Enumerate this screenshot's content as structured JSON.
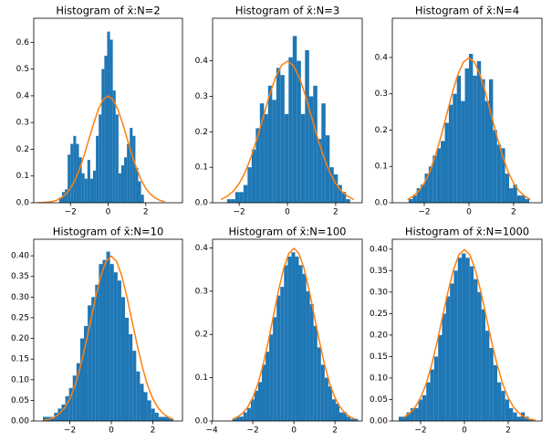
{
  "chart_data": [
    {
      "type": "histogram",
      "title": "Histogram of x̄:N=2",
      "color": "#1f77b4",
      "bins": [
        -2.6,
        -2.45,
        -2.3,
        -2.15,
        -2.0,
        -1.85,
        -1.7,
        -1.55,
        -1.4,
        -1.25,
        -1.1,
        -0.95,
        -0.8,
        -0.65,
        -0.5,
        -0.35,
        -0.2,
        -0.05,
        0.1,
        0.25,
        0.4,
        0.55,
        0.7,
        0.85,
        1.0,
        1.15,
        1.3,
        1.45,
        1.6,
        1.75,
        1.9
      ],
      "values": [
        0.02,
        0.04,
        0.05,
        0.18,
        0.22,
        0.25,
        0.22,
        0.17,
        0.11,
        0.09,
        0.16,
        0.09,
        0.12,
        0.25,
        0.33,
        0.5,
        0.55,
        0.64,
        0.61,
        0.42,
        0.33,
        0.11,
        0.14,
        0.17,
        0.22,
        0.28,
        0.25,
        0.13,
        0.08,
        0.03
      ],
      "curve": {
        "color": "#ff7f0e",
        "x": [
          -3.75,
          -3.5,
          -3.25,
          -3.0,
          -2.75,
          -2.5,
          -2.25,
          -2.0,
          -1.75,
          -1.5,
          -1.25,
          -1.0,
          -0.75,
          -0.5,
          -0.25,
          0,
          0.25,
          0.5,
          0.75,
          1.0,
          1.25,
          1.5,
          1.75,
          2.0,
          2.25,
          2.5,
          2.75,
          3.0
        ],
        "values": [
          0.0004,
          0.001,
          0.002,
          0.004,
          0.009,
          0.018,
          0.032,
          0.054,
          0.086,
          0.13,
          0.183,
          0.242,
          0.301,
          0.352,
          0.387,
          0.399,
          0.387,
          0.352,
          0.301,
          0.242,
          0.183,
          0.13,
          0.086,
          0.054,
          0.032,
          0.018,
          0.009,
          0.004
        ]
      },
      "xlim": [
        -3.95,
        3.95
      ],
      "ylim": [
        0,
        0.69
      ],
      "xticks": [
        {
          "value": -2,
          "label": "−2"
        },
        0,
        2
      ],
      "yticks": [
        {
          "value": 0,
          "label": "0.0"
        },
        0.1,
        0.2,
        0.3,
        0.4,
        0.5,
        0.6
      ]
    },
    {
      "type": "histogram",
      "title": "Histogram of x̄:N=3",
      "color": "#1f77b4",
      "bins": [
        -2.5,
        -2.33,
        -2.16,
        -1.99,
        -1.82,
        -1.65,
        -1.48,
        -1.31,
        -1.14,
        -0.97,
        -0.8,
        -0.63,
        -0.46,
        -0.29,
        -0.12,
        0.05,
        0.22,
        0.39,
        0.56,
        0.73,
        0.9,
        1.07,
        1.24,
        1.41,
        1.58,
        1.75,
        1.92,
        2.09,
        2.26,
        2.43,
        2.6
      ],
      "values": [
        0.01,
        0.01,
        0.03,
        0.03,
        0.05,
        0.1,
        0.15,
        0.21,
        0.28,
        0.25,
        0.33,
        0.29,
        0.38,
        0.36,
        0.25,
        0.41,
        0.47,
        0.4,
        0.25,
        0.43,
        0.3,
        0.33,
        0.18,
        0.28,
        0.19,
        0.1,
        0.08,
        0.05,
        0.03,
        0.01
      ],
      "curve": {
        "color": "#ff7f0e",
        "x": [
          -2.75,
          -2.5,
          -2.25,
          -2.0,
          -1.75,
          -1.5,
          -1.25,
          -1.0,
          -0.75,
          -0.5,
          -0.25,
          0,
          0.25,
          0.5,
          0.75,
          1.0,
          1.25,
          1.5,
          1.75,
          2.0,
          2.25,
          2.5,
          2.75
        ],
        "values": [
          0.009,
          0.018,
          0.032,
          0.054,
          0.086,
          0.13,
          0.183,
          0.242,
          0.301,
          0.352,
          0.387,
          0.399,
          0.387,
          0.352,
          0.301,
          0.242,
          0.183,
          0.13,
          0.086,
          0.054,
          0.032,
          0.018,
          0.009
        ]
      },
      "xlim": [
        -3.1,
        3.1
      ],
      "ylim": [
        0,
        0.52
      ],
      "xticks": [
        {
          "value": -2,
          "label": "−2"
        },
        0,
        2
      ],
      "yticks": [
        {
          "value": 0,
          "label": "0.0"
        },
        0.1,
        0.2,
        0.3,
        0.4
      ]
    },
    {
      "type": "histogram",
      "title": "Histogram of x̄:N=4",
      "color": "#1f77b4",
      "bins": [
        -2.7,
        -2.52,
        -2.34,
        -2.16,
        -1.98,
        -1.8,
        -1.62,
        -1.44,
        -1.26,
        -1.08,
        -0.9,
        -0.72,
        -0.54,
        -0.36,
        -0.18,
        0,
        0.18,
        0.36,
        0.54,
        0.72,
        0.9,
        1.08,
        1.26,
        1.44,
        1.62,
        1.8,
        1.98,
        2.16,
        2.34,
        2.52,
        2.7
      ],
      "values": [
        0.01,
        0.02,
        0.04,
        0.05,
        0.08,
        0.1,
        0.13,
        0.15,
        0.17,
        0.22,
        0.27,
        0.3,
        0.35,
        0.28,
        0.37,
        0.41,
        0.35,
        0.39,
        0.34,
        0.28,
        0.34,
        0.2,
        0.16,
        0.15,
        0.08,
        0.04,
        0.05,
        0.02,
        0.02,
        0.01
      ],
      "curve": {
        "color": "#ff7f0e",
        "x": [
          -2.75,
          -2.5,
          -2.25,
          -2.0,
          -1.75,
          -1.5,
          -1.25,
          -1.0,
          -0.75,
          -0.5,
          -0.25,
          0,
          0.25,
          0.5,
          0.75,
          1.0,
          1.25,
          1.5,
          1.75,
          2.0,
          2.25,
          2.5,
          2.75
        ],
        "values": [
          0.009,
          0.018,
          0.032,
          0.054,
          0.086,
          0.13,
          0.183,
          0.242,
          0.301,
          0.352,
          0.387,
          0.399,
          0.387,
          0.352,
          0.301,
          0.242,
          0.183,
          0.13,
          0.086,
          0.054,
          0.032,
          0.018,
          0.009
        ]
      },
      "xlim": [
        -3.43,
        3.27
      ],
      "ylim": [
        0,
        0.508
      ],
      "xticks": [
        {
          "value": -2,
          "label": "−2"
        },
        0,
        2
      ],
      "yticks": [
        {
          "value": 0,
          "label": "0.0"
        },
        0.1,
        0.2,
        0.3,
        0.4
      ]
    },
    {
      "type": "histogram",
      "title": "Histogram of x̄:N=10",
      "color": "#1f77b4",
      "bins": [
        -3.3,
        -3.12,
        -2.94,
        -2.76,
        -2.58,
        -2.4,
        -2.22,
        -2.04,
        -1.86,
        -1.68,
        -1.5,
        -1.32,
        -1.14,
        -0.96,
        -0.78,
        -0.6,
        -0.42,
        -0.24,
        -0.06,
        0.12,
        0.3,
        0.48,
        0.66,
        0.84,
        1.02,
        1.2,
        1.38,
        1.56,
        1.74,
        1.92,
        2.1,
        2.28,
        2.46,
        2.64,
        2.82,
        3.0
      ],
      "values": [
        0.01,
        0.01,
        0.01,
        0.02,
        0.03,
        0.04,
        0.06,
        0.08,
        0.11,
        0.14,
        0.2,
        0.23,
        0.28,
        0.3,
        0.33,
        0.38,
        0.39,
        0.41,
        0.38,
        0.36,
        0.34,
        0.3,
        0.25,
        0.21,
        0.17,
        0.12,
        0.09,
        0.07,
        0.05,
        0.03,
        0.02,
        0.01,
        0.01,
        0.01,
        0.005
      ],
      "curve": {
        "color": "#ff7f0e",
        "x": [
          -3.25,
          -3.0,
          -2.75,
          -2.5,
          -2.25,
          -2.0,
          -1.75,
          -1.5,
          -1.25,
          -1.0,
          -0.75,
          -0.5,
          -0.25,
          0,
          0.25,
          0.5,
          0.75,
          1.0,
          1.25,
          1.5,
          1.75,
          2.0,
          2.25,
          2.5,
          2.75,
          3.0
        ],
        "values": [
          0.002,
          0.004,
          0.009,
          0.018,
          0.032,
          0.054,
          0.086,
          0.13,
          0.183,
          0.242,
          0.301,
          0.352,
          0.387,
          0.399,
          0.387,
          0.352,
          0.301,
          0.242,
          0.183,
          0.13,
          0.086,
          0.054,
          0.032,
          0.018,
          0.009,
          0.004
        ]
      },
      "xlim": [
        -3.74,
        3.43
      ],
      "ylim": [
        0,
        0.44
      ],
      "xticks": [
        {
          "value": -2,
          "label": "−2"
        },
        0,
        2
      ],
      "yticks": [
        {
          "value": 0,
          "label": "0.00"
        },
        0.05,
        {
          "value": 0.1,
          "label": "0.10"
        },
        0.15,
        {
          "value": 0.2,
          "label": "0.20"
        },
        0.25,
        {
          "value": 0.3,
          "label": "0.30"
        },
        0.35,
        {
          "value": 0.4,
          "label": "0.40"
        }
      ]
    },
    {
      "type": "histogram",
      "title": "Histogram of x̄:N=100",
      "color": "#1f77b4",
      "bins": [
        -3.0,
        -2.82,
        -2.64,
        -2.46,
        -2.28,
        -2.1,
        -1.92,
        -1.74,
        -1.56,
        -1.38,
        -1.2,
        -1.02,
        -0.84,
        -0.66,
        -0.48,
        -0.3,
        -0.12,
        0.06,
        0.24,
        0.42,
        0.6,
        0.78,
        0.96,
        1.14,
        1.32,
        1.5,
        1.68,
        1.86,
        2.04,
        2.22,
        2.4,
        2.58,
        2.76,
        2.94,
        3.12
      ],
      "values": [
        0.005,
        0.01,
        0.01,
        0.02,
        0.03,
        0.05,
        0.07,
        0.09,
        0.13,
        0.16,
        0.2,
        0.24,
        0.29,
        0.31,
        0.36,
        0.38,
        0.39,
        0.38,
        0.36,
        0.34,
        0.3,
        0.27,
        0.22,
        0.17,
        0.13,
        0.1,
        0.08,
        0.05,
        0.04,
        0.02,
        0.02,
        0.01,
        0.005,
        0.005
      ],
      "curve": {
        "color": "#ff7f0e",
        "x": [
          -3.0,
          -2.75,
          -2.5,
          -2.25,
          -2.0,
          -1.75,
          -1.5,
          -1.25,
          -1.0,
          -0.75,
          -0.5,
          -0.25,
          0,
          0.25,
          0.5,
          0.75,
          1.0,
          1.25,
          1.5,
          1.75,
          2.0,
          2.25,
          2.5,
          2.75,
          3.0
        ],
        "values": [
          0.004,
          0.009,
          0.018,
          0.032,
          0.054,
          0.086,
          0.13,
          0.183,
          0.242,
          0.301,
          0.352,
          0.387,
          0.399,
          0.387,
          0.352,
          0.301,
          0.242,
          0.183,
          0.13,
          0.086,
          0.054,
          0.032,
          0.018,
          0.009,
          0.004
        ]
      },
      "xlim": [
        -3.96,
        3.33
      ],
      "ylim": [
        0,
        0.42
      ],
      "xticks": [
        {
          "value": -4,
          "label": "−4"
        },
        {
          "value": -2,
          "label": "−2"
        },
        0,
        2
      ],
      "yticks": [
        {
          "value": 0,
          "label": "0.0"
        },
        0.1,
        0.2,
        0.3,
        0.4
      ]
    },
    {
      "type": "histogram",
      "title": "Histogram of x̄:N=1000",
      "color": "#1f77b4",
      "bins": [
        -3.0,
        -2.82,
        -2.64,
        -2.46,
        -2.28,
        -2.1,
        -1.92,
        -1.74,
        -1.56,
        -1.38,
        -1.2,
        -1.02,
        -0.84,
        -0.66,
        -0.48,
        -0.3,
        -0.12,
        0.06,
        0.24,
        0.42,
        0.6,
        0.78,
        0.96,
        1.14,
        1.32,
        1.5,
        1.68,
        1.86,
        2.04,
        2.22,
        2.4,
        2.58,
        2.76,
        2.94,
        3.12
      ],
      "values": [
        0.01,
        0.01,
        0.02,
        0.03,
        0.03,
        0.05,
        0.06,
        0.09,
        0.12,
        0.15,
        0.2,
        0.25,
        0.29,
        0.32,
        0.35,
        0.38,
        0.39,
        0.38,
        0.36,
        0.33,
        0.3,
        0.26,
        0.21,
        0.17,
        0.13,
        0.09,
        0.07,
        0.05,
        0.03,
        0.02,
        0.01,
        0.02,
        0.01,
        0.005
      ],
      "curve": {
        "color": "#ff7f0e",
        "x": [
          -2.75,
          -2.5,
          -2.25,
          -2.0,
          -1.75,
          -1.5,
          -1.25,
          -1.0,
          -0.75,
          -0.5,
          -0.25,
          0,
          0.25,
          0.5,
          0.75,
          1.0,
          1.25,
          1.5,
          1.75,
          2.0,
          2.25,
          2.5,
          2.75,
          3.0,
          3.25
        ],
        "values": [
          0.009,
          0.018,
          0.032,
          0.054,
          0.086,
          0.13,
          0.183,
          0.242,
          0.301,
          0.352,
          0.387,
          0.399,
          0.387,
          0.352,
          0.301,
          0.242,
          0.183,
          0.13,
          0.086,
          0.054,
          0.032,
          0.018,
          0.009,
          0.004,
          0.002
        ]
      },
      "xlim": [
        -3.29,
        3.54
      ],
      "ylim": [
        0,
        0.423
      ],
      "xticks": [
        {
          "value": -2,
          "label": "−2"
        },
        0,
        2
      ],
      "yticks": [
        {
          "value": 0,
          "label": "0.00"
        },
        0.05,
        {
          "value": 0.1,
          "label": "0.10"
        },
        0.15,
        {
          "value": 0.2,
          "label": "0.20"
        },
        0.25,
        {
          "value": 0.3,
          "label": "0.30"
        },
        0.35,
        {
          "value": 0.4,
          "label": "0.40"
        }
      ]
    }
  ]
}
